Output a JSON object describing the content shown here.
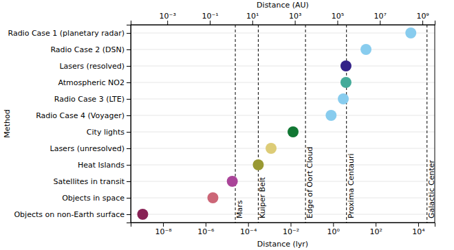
{
  "chart_data": {
    "type": "scatter",
    "orientation": "horizontal",
    "x_label": "Distance (lyr)",
    "x2_label": "Distance (AU)",
    "y_label": "Method",
    "log": "x",
    "grid": true,
    "marker": "circle",
    "categories": [
      "Radio Case 1 (planetary radar)",
      "Radio Case 2 (DSN)",
      "Lasers (resolved)",
      "Atmospheric NO2",
      "Radio Case 3 (LTE)",
      "Radio Case 4 (Voyager)",
      "City lights",
      "Lasers (unresolved)",
      "Heat Islands",
      "Satellites in transit",
      "Objects in space",
      "Objects on non-Earth surface"
    ],
    "values": [
      4500,
      35,
      4,
      4,
      3,
      0.8,
      0.013,
      0.0012,
      0.0003,
      1.8e-05,
      2.2e-06,
      1.1e-09
    ],
    "colors": [
      "#88CCEE",
      "#88CCEE",
      "#332288",
      "#44AA99",
      "#88CCEE",
      "#88CCEE",
      "#117733",
      "#DDCC77",
      "#999933",
      "#AA4499",
      "#CC6677",
      "#882255"
    ],
    "xlim": [
      3e-10,
      60000
    ],
    "xticks": [
      {
        "value": 1e-08,
        "label": "10⁻⁸"
      },
      {
        "value": 1e-06,
        "label": "10⁻⁶"
      },
      {
        "value": 0.0001,
        "label": "10⁻⁴"
      },
      {
        "value": 0.01,
        "label": "10⁻²"
      },
      {
        "value": 1,
        "label": "10⁰"
      },
      {
        "value": 100,
        "label": "10²"
      },
      {
        "value": 10000,
        "label": "10⁴"
      }
    ],
    "x2lim": [
      1.9e-05,
      3800000000.0
    ],
    "x2ticks": [
      {
        "value": 0.001,
        "label": "10⁻³"
      },
      {
        "value": 0.1,
        "label": "10⁻¹"
      },
      {
        "value": 10,
        "label": "10¹"
      },
      {
        "value": 1000,
        "label": "10³"
      },
      {
        "value": 100000,
        "label": "10⁵"
      },
      {
        "value": 10000000,
        "label": "10⁷"
      },
      {
        "value": 1000000000,
        "label": "10⁹"
      }
    ],
    "annotations": [
      {
        "label": "Mars",
        "x": 2.5e-05
      },
      {
        "label": "Kuiper Belt",
        "x": 0.0003
      },
      {
        "label": "Edge of Oort Cloud",
        "x": 0.05
      },
      {
        "label": "Proxima Centauri",
        "x": 4.24
      },
      {
        "label": "Galactic Center",
        "x": 26000
      }
    ]
  }
}
